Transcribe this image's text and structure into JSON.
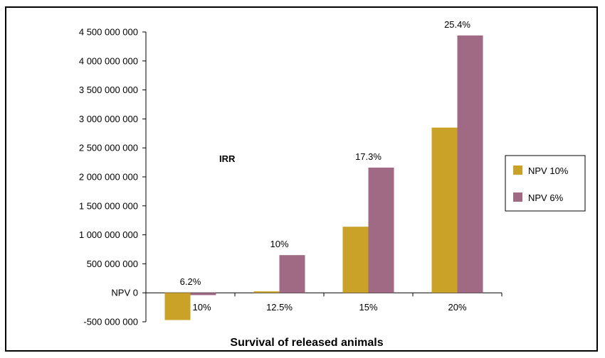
{
  "chart_data": {
    "type": "bar",
    "categories": [
      "10%",
      "12.5%",
      "15%",
      "20%"
    ],
    "series": [
      {
        "name": "NPV 10%",
        "color": "#C9A227",
        "values": [
          -470000000,
          25000000,
          1140000000,
          2850000000
        ]
      },
      {
        "name": "NPV 6%",
        "color": "#A06A84",
        "values": [
          -40000000,
          650000000,
          2160000000,
          4440000000
        ]
      }
    ],
    "irr_title": "IRR",
    "irr_labels": [
      "6.2%",
      "10%",
      "17.3%",
      "25.4%"
    ],
    "xlabel": "Survival of released animals",
    "ylim": [
      -500000000,
      4500000000
    ],
    "yticks": [
      -500000000,
      0,
      500000000,
      1000000000,
      1500000000,
      2000000000,
      2500000000,
      3000000000,
      3500000000,
      4000000000,
      4500000000
    ],
    "ytick_labels": [
      "-500 000 000",
      "NPV 0",
      "500 000 000",
      "1 000 000 000",
      "1 500 000 000",
      "2 000 000 000",
      "2 500 000 000",
      "3 000 000 000",
      "3 500 000 000",
      "4 000 000 000",
      "4 500 000 000"
    ],
    "legend_position": "right",
    "grid": false
  }
}
